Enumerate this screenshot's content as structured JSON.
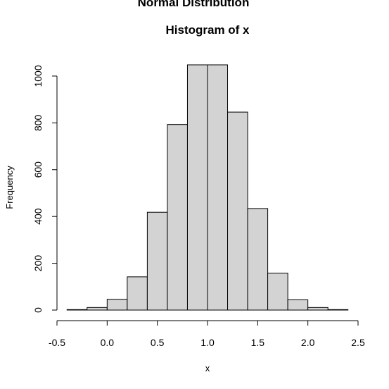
{
  "chart_data": {
    "type": "bar",
    "subtitle": "Normal Distribution",
    "title": "Histogram of x",
    "xlabel": "x",
    "ylabel": "Frequency",
    "bin_edges": [
      -0.4,
      -0.2,
      0.0,
      0.2,
      0.4,
      0.6,
      0.8,
      1.0,
      1.2,
      1.4,
      1.6,
      1.8,
      2.0,
      2.2,
      2.4
    ],
    "counts": [
      2,
      11,
      46,
      142,
      418,
      793,
      1048,
      1048,
      846,
      434,
      158,
      44,
      11,
      2
    ],
    "x_ticks": [
      -0.5,
      0.0,
      0.5,
      1.0,
      1.5,
      2.0,
      2.5
    ],
    "x_tick_labels": [
      "-0.5",
      "0.0",
      "0.5",
      "1.0",
      "1.5",
      "2.0",
      "2.5"
    ],
    "y_ticks": [
      0,
      200,
      400,
      600,
      800,
      1000
    ],
    "y_tick_labels": [
      "0",
      "200",
      "400",
      "600",
      "800",
      "1000"
    ],
    "xlim": [
      -0.5,
      2.5
    ],
    "ylim": [
      0,
      1048
    ],
    "bar_color": "#d3d3d3",
    "edge_color": "#000000",
    "grid": false,
    "legend": "none"
  }
}
